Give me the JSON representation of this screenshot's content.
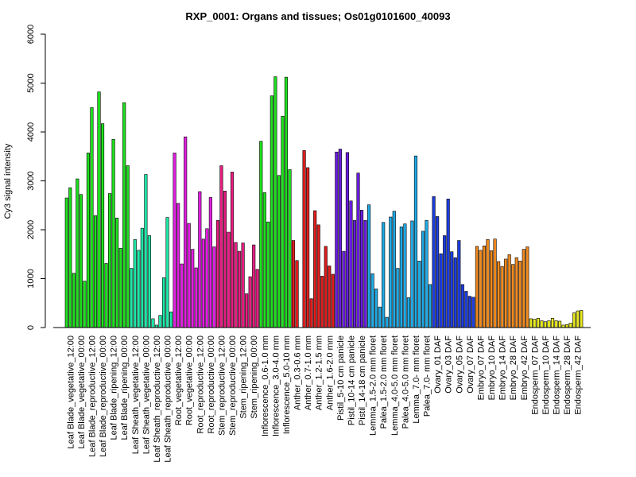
{
  "chart_data": {
    "type": "bar",
    "title": "RXP_0001: Organs and tissues; Os01g0101600_40093",
    "xlabel": "",
    "ylabel": "Cy3 signal intensity",
    "ylim": [
      0,
      6000
    ],
    "yticks": [
      0,
      1000,
      2000,
      3000,
      4000,
      5000,
      6000
    ],
    "grid": false,
    "legend": "none",
    "bars_per_group": 3,
    "groups": [
      {
        "label": "Leaf Blade_vegetative_12:00",
        "color": "#1ee01e",
        "values": [
          2650,
          2860,
          1110
        ]
      },
      {
        "label": "Leaf Blade_vegetative_00:00",
        "color": "#1ee01e",
        "values": [
          3040,
          2720,
          950
        ]
      },
      {
        "label": "Leaf Blade_reproductive_12:00",
        "color": "#1ee01e",
        "values": [
          3570,
          4500,
          2290
        ]
      },
      {
        "label": "Leaf Blade_reproductive_00:00",
        "color": "#1ee01e",
        "values": [
          4820,
          4170,
          1310
        ]
      },
      {
        "label": "Leaf Blade_ripening_12:00",
        "color": "#1ee01e",
        "values": [
          2740,
          3850,
          2240
        ]
      },
      {
        "label": "Leaf Blade_ripening_00:00",
        "color": "#1ee01e",
        "values": [
          1620,
          4600,
          3310
        ]
      },
      {
        "label": "Leaf Sheath_vegetative_12:00",
        "color": "#1ee8a8",
        "values": [
          1210,
          1800,
          1580
        ]
      },
      {
        "label": "Leaf Sheath_vegetative_00:00",
        "color": "#1ee8a8",
        "values": [
          2030,
          3130,
          1880
        ]
      },
      {
        "label": "Leaf Sheath_reproductive_12:00",
        "color": "#1ee8a8",
        "values": [
          180,
          50,
          250
        ]
      },
      {
        "label": "Leaf Sheath_reproductive_00:00",
        "color": "#1ee8a8",
        "values": [
          1020,
          2250,
          320
        ]
      },
      {
        "label": "Root_vegetative_12:00",
        "color": "#e21ee2",
        "values": [
          3570,
          2540,
          1300
        ]
      },
      {
        "label": "Root_vegetative_00:00",
        "color": "#e21ee2",
        "values": [
          3900,
          2130,
          1600
        ]
      },
      {
        "label": "Root_reproductive_12:00",
        "color": "#e21ee2",
        "values": [
          1220,
          2780,
          1810
        ]
      },
      {
        "label": "Root_reproductive_00:00",
        "color": "#e21ee2",
        "values": [
          2020,
          2660,
          1650
        ]
      },
      {
        "label": "Stem_reproductive_12:00",
        "color": "#e81e82",
        "values": [
          2190,
          3310,
          2790
        ]
      },
      {
        "label": "Stem_reproductive_00:00",
        "color": "#e81e82",
        "values": [
          1950,
          3180,
          1740
        ]
      },
      {
        "label": "Stem_ripening_12:00",
        "color": "#e81e82",
        "values": [
          1560,
          1730,
          690
        ]
      },
      {
        "label": "Stem_ripening_00:00",
        "color": "#e81e82",
        "values": [
          1040,
          1690,
          1190
        ]
      },
      {
        "label": "Inflorescence_0.6-1.0 mm",
        "color": "#1ee01e",
        "values": [
          3810,
          2760,
          2160
        ]
      },
      {
        "label": "Inflorescence_3.0-4.0 mm",
        "color": "#1ee01e",
        "values": [
          4740,
          5130,
          3110
        ]
      },
      {
        "label": "Inflorescence_5.0-10 mm",
        "color": "#1ee01e",
        "values": [
          4320,
          5120,
          3230
        ]
      },
      {
        "label": "Anther_0.3-0.6 mm",
        "color": "#e01e1e",
        "values": [
          1780,
          1370,
          0
        ]
      },
      {
        "label": "Anther_0.7-1.0 mm",
        "color": "#e01e1e",
        "values": [
          3620,
          3270,
          590
        ]
      },
      {
        "label": "Anther_1.2-1.5 mm",
        "color": "#e01e1e",
        "values": [
          2390,
          2100,
          1050
        ]
      },
      {
        "label": "Anther_1.6-2.0 mm",
        "color": "#e01e1e",
        "values": [
          1660,
          1260,
          1090
        ]
      },
      {
        "label": "Pistil_5-10 cm panicle",
        "color": "#6a1ee0",
        "values": [
          3590,
          3650,
          1560
        ]
      },
      {
        "label": "Pistil_10-14 cm panicle",
        "color": "#6a1ee0",
        "values": [
          3580,
          2590,
          2190
        ]
      },
      {
        "label": "Pistil_14-18 cm panicle",
        "color": "#6a1ee0",
        "values": [
          3160,
          2400,
          2190
        ]
      },
      {
        "label": "Lemma_1.5-2.0 mm floret",
        "color": "#1eaae6",
        "values": [
          2510,
          1100,
          790
        ]
      },
      {
        "label": "Palea_1.5-2.0 mm floret",
        "color": "#1eaae6",
        "values": [
          420,
          2150,
          210
        ]
      },
      {
        "label": "Lemma_4.0-5.0 mm floret",
        "color": "#1eaae6",
        "values": [
          2260,
          2380,
          1210
        ]
      },
      {
        "label": "Palea_4.0-5.0 mm floret",
        "color": "#1eaae6",
        "values": [
          2060,
          2120,
          610
        ]
      },
      {
        "label": "Lemma_7.0- mm floret",
        "color": "#1eaae6",
        "values": [
          2180,
          3510,
          1360
        ]
      },
      {
        "label": "Palea_7.0- mm floret",
        "color": "#1eaae6",
        "values": [
          1970,
          2190,
          880
        ]
      },
      {
        "label": "Ovary_01 DAF",
        "color": "#1e3ee0",
        "values": [
          2680,
          2270,
          1510
        ]
      },
      {
        "label": "Ovary_03 DAF",
        "color": "#1e3ee0",
        "values": [
          1880,
          2630,
          1550
        ]
      },
      {
        "label": "Ovary_05 DAF",
        "color": "#1e3ee0",
        "values": [
          1430,
          1780,
          880
        ]
      },
      {
        "label": "Ovary_07 DAF",
        "color": "#1e3ee0",
        "values": [
          740,
          640,
          620
        ]
      },
      {
        "label": "Embryo_07 DAF",
        "color": "#f08a1e",
        "values": [
          1660,
          1580,
          1670
        ]
      },
      {
        "label": "Embryo_10 DAF",
        "color": "#f08a1e",
        "values": [
          1800,
          1570,
          1810
        ]
      },
      {
        "label": "Embryo_14 DAF",
        "color": "#f08a1e",
        "values": [
          1350,
          1250,
          1400
        ]
      },
      {
        "label": "Embryo_28 DAF",
        "color": "#f08a1e",
        "values": [
          1490,
          1290,
          1430
        ]
      },
      {
        "label": "Embryo_42 DAF",
        "color": "#f08a1e",
        "values": [
          1360,
          1600,
          1650
        ]
      },
      {
        "label": "Endosperm_07 DAF",
        "color": "#e6e81e",
        "values": [
          180,
          170,
          190
        ]
      },
      {
        "label": "Endosperm_10 DAF",
        "color": "#e6e81e",
        "values": [
          140,
          120,
          140
        ]
      },
      {
        "label": "Endosperm_14 DAF",
        "color": "#e6e81e",
        "values": [
          190,
          140,
          130
        ]
      },
      {
        "label": "Endosperm_28 DAF",
        "color": "#e6e81e",
        "values": [
          50,
          60,
          90
        ]
      },
      {
        "label": "Endosperm_42 DAF",
        "color": "#e6e81e",
        "values": [
          300,
          340,
          350
        ]
      }
    ]
  }
}
